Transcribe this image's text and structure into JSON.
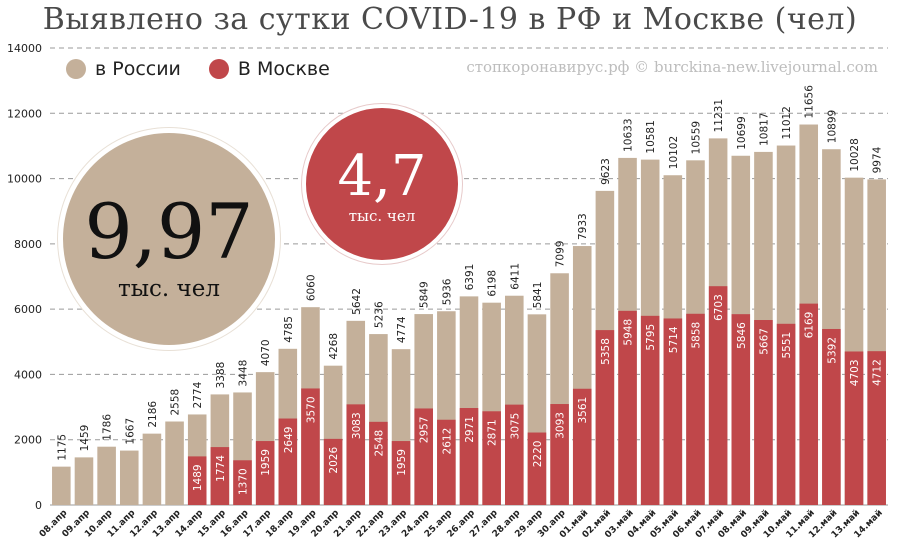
{
  "header": {
    "title": "Выявлено за сутки COVID-19 в РФ и Москве (чел)",
    "source": "стопкоронавирус.рф © burckina-new.livejournal.com"
  },
  "legend": {
    "russia": "в России",
    "moscow": "В Москве"
  },
  "colors": {
    "russia": "#c4b09a",
    "moscow": "#c0474a"
  },
  "bubbles": {
    "russia": {
      "value": "9,97",
      "unit": "тыс. чел"
    },
    "moscow": {
      "value": "4,7",
      "unit": "тыс. чел"
    }
  },
  "chart_data": {
    "type": "bar",
    "ylim": [
      0,
      14000
    ],
    "yticks": [
      0,
      2000,
      4000,
      6000,
      8000,
      10000,
      12000,
      14000
    ],
    "grid": true,
    "legend_position": "top-left",
    "categories": [
      "08.апр",
      "09.апр",
      "10.апр",
      "11.апр",
      "12.апр",
      "13.апр",
      "14.апр",
      "15.апр",
      "16.апр",
      "17.апр",
      "18.апр",
      "19.апр",
      "20.апр",
      "21.апр",
      "22.апр",
      "23.апр",
      "24.апр",
      "25.апр",
      "26.апр",
      "27.апр",
      "28.апр",
      "29.апр",
      "30.апр",
      "01.май",
      "02.май",
      "03.май",
      "04.май",
      "05.май",
      "06.май",
      "07.май",
      "08.май",
      "09.май",
      "10.май",
      "11.май",
      "12.май",
      "13.май",
      "14.май"
    ],
    "series": [
      {
        "name": "в России",
        "values": [
          1175,
          1459,
          1786,
          1667,
          2186,
          2558,
          2774,
          3388,
          3448,
          4070,
          4785,
          6060,
          4268,
          5642,
          5236,
          4774,
          5849,
          5936,
          6391,
          6198,
          6411,
          5841,
          7099,
          7933,
          9623,
          10633,
          10581,
          10102,
          10559,
          11231,
          10699,
          10817,
          11012,
          11656,
          10899,
          10028,
          9974
        ]
      },
      {
        "name": "В Москве",
        "values": [
          null,
          null,
          null,
          null,
          null,
          null,
          1489,
          1774,
          1370,
          1959,
          2649,
          3570,
          2026,
          3083,
          2548,
          1959,
          2957,
          2612,
          2971,
          2871,
          3075,
          2220,
          3093,
          3561,
          5358,
          5948,
          5795,
          5714,
          5858,
          6703,
          5846,
          5667,
          5551,
          6169,
          5392,
          4703,
          4712
        ]
      }
    ]
  }
}
